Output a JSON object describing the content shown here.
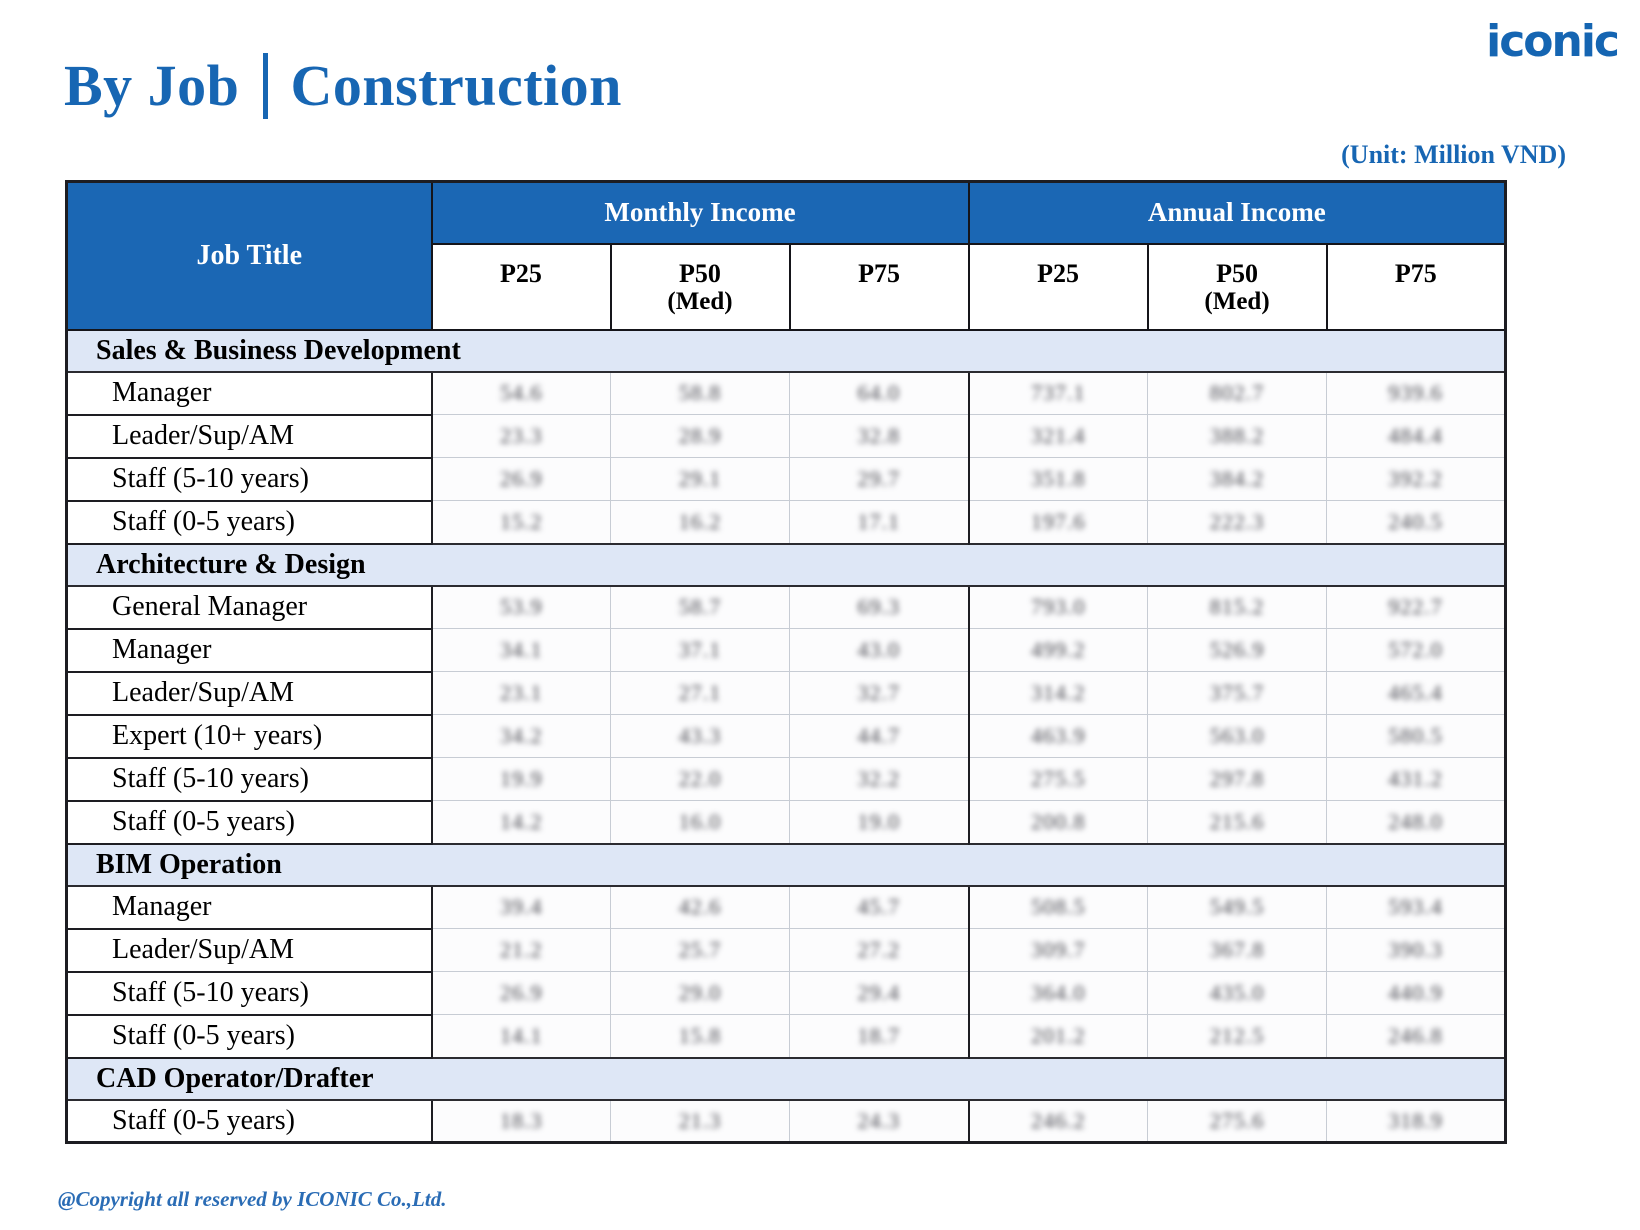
{
  "page": {
    "title_left": "By Job",
    "title_right": "Construction",
    "logo_text": "iconic",
    "unit_label": "(Unit: Million VND)",
    "copyright": "@Copyright all reserved by ICONIC Co.,Ltd."
  },
  "colors": {
    "header_blue": "#1b67b4",
    "section_light_blue": "#dee7f6",
    "title_blue": "#1766b3",
    "border_dark": "#1d1d22",
    "grid_light": "#c7ccd4"
  },
  "table": {
    "job_title_header": "Job Title",
    "groups": [
      {
        "label": "Monthly Income"
      },
      {
        "label": "Annual Income"
      }
    ],
    "subheaders": [
      {
        "label": "P25",
        "sub": ""
      },
      {
        "label": "P50",
        "sub": "(Med)"
      },
      {
        "label": "P75",
        "sub": ""
      },
      {
        "label": "P25",
        "sub": ""
      },
      {
        "label": "P50",
        "sub": "(Med)"
      },
      {
        "label": "P75",
        "sub": ""
      }
    ],
    "values_blurred_in_source": true,
    "sections": [
      {
        "name": "Sales & Business Development",
        "rows": [
          {
            "job": "Manager",
            "values": [
              "54.6",
              "58.8",
              "64.0",
              "737.1",
              "802.7",
              "939.6"
            ]
          },
          {
            "job": "Leader/Sup/AM",
            "values": [
              "23.3",
              "28.9",
              "32.8",
              "321.4",
              "388.2",
              "484.4"
            ]
          },
          {
            "job": "Staff (5-10 years)",
            "values": [
              "26.9",
              "29.1",
              "29.7",
              "351.8",
              "384.2",
              "392.2"
            ]
          },
          {
            "job": "Staff (0-5 years)",
            "values": [
              "15.2",
              "16.2",
              "17.1",
              "197.6",
              "222.3",
              "240.5"
            ]
          }
        ]
      },
      {
        "name": "Architecture & Design",
        "rows": [
          {
            "job": "General Manager",
            "values": [
              "53.9",
              "58.7",
              "69.3",
              "793.0",
              "815.2",
              "922.7"
            ]
          },
          {
            "job": "Manager",
            "values": [
              "34.1",
              "37.1",
              "43.0",
              "499.2",
              "526.9",
              "572.0"
            ]
          },
          {
            "job": "Leader/Sup/AM",
            "values": [
              "23.1",
              "27.1",
              "32.7",
              "314.2",
              "375.7",
              "465.4"
            ]
          },
          {
            "job": "Expert (10+ years)",
            "values": [
              "34.2",
              "43.3",
              "44.7",
              "463.9",
              "563.0",
              "580.5"
            ]
          },
          {
            "job": "Staff (5-10 years)",
            "values": [
              "19.9",
              "22.0",
              "32.2",
              "275.5",
              "297.8",
              "431.2"
            ]
          },
          {
            "job": "Staff (0-5 years)",
            "values": [
              "14.2",
              "16.0",
              "19.0",
              "200.8",
              "215.6",
              "248.0"
            ]
          }
        ]
      },
      {
        "name": "BIM Operation",
        "rows": [
          {
            "job": "Manager",
            "values": [
              "39.4",
              "42.6",
              "45.7",
              "508.5",
              "549.5",
              "593.4"
            ]
          },
          {
            "job": "Leader/Sup/AM",
            "values": [
              "21.2",
              "25.7",
              "27.2",
              "309.7",
              "367.8",
              "390.3"
            ]
          },
          {
            "job": "Staff (5-10 years)",
            "values": [
              "26.9",
              "29.0",
              "29.4",
              "364.0",
              "435.0",
              "440.9"
            ]
          },
          {
            "job": "Staff (0-5 years)",
            "values": [
              "14.1",
              "15.8",
              "18.7",
              "201.2",
              "212.5",
              "246.8"
            ]
          }
        ]
      },
      {
        "name": "CAD Operator/Drafter",
        "rows": [
          {
            "job": "Staff (0-5 years)",
            "values": [
              "18.3",
              "21.3",
              "24.3",
              "246.2",
              "275.6",
              "318.9"
            ]
          }
        ]
      }
    ]
  }
}
